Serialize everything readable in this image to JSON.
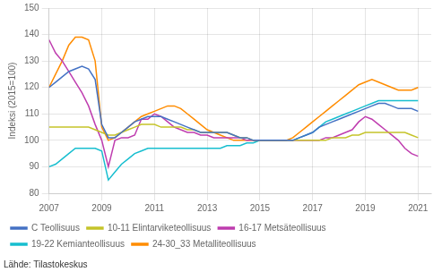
{
  "chart_data": {
    "type": "line",
    "ylabel": "Indeksi (2015=100)",
    "annotations": [
      "Lähde: Tilastokeskus"
    ],
    "x": [
      2007,
      2007.25,
      2007.5,
      2007.75,
      2008,
      2008.25,
      2008.5,
      2008.75,
      2009,
      2009.25,
      2009.5,
      2009.75,
      2010,
      2010.25,
      2010.5,
      2010.75,
      2011,
      2011.25,
      2011.5,
      2011.75,
      2012,
      2012.25,
      2012.5,
      2012.75,
      2013,
      2013.25,
      2013.5,
      2013.75,
      2014,
      2014.25,
      2014.5,
      2014.75,
      2015,
      2015.25,
      2015.5,
      2015.75,
      2016,
      2016.25,
      2016.5,
      2016.75,
      2017,
      2017.25,
      2017.5,
      2017.75,
      2018,
      2018.25,
      2018.5,
      2018.75,
      2019,
      2019.25,
      2019.5,
      2019.75,
      2020,
      2020.25,
      2020.5,
      2020.75,
      2021
    ],
    "series": [
      {
        "name": "C Teollisuus",
        "color": "#4472c4",
        "values": [
          120,
          122,
          124,
          126,
          127,
          128,
          127,
          123,
          106,
          101,
          101,
          103,
          105,
          107,
          108,
          109,
          109,
          109,
          108,
          107,
          106,
          105,
          104,
          103,
          103,
          103,
          103,
          103,
          102,
          101,
          101,
          100,
          100,
          100,
          100,
          100,
          100,
          100,
          101,
          102,
          103,
          105,
          106,
          107,
          108,
          109,
          110,
          111,
          112,
          113,
          114,
          114,
          113,
          112,
          112,
          112,
          111
        ]
      },
      {
        "name": "10-11 Elintarviketeollisuus",
        "color": "#c5c42a",
        "values": [
          105,
          105,
          105,
          105,
          105,
          105,
          105,
          104,
          103,
          102,
          102,
          103,
          104,
          105,
          106,
          106,
          106,
          105,
          105,
          105,
          105,
          104,
          104,
          103,
          103,
          103,
          103,
          103,
          102,
          101,
          101,
          100,
          100,
          100,
          100,
          100,
          100,
          100,
          100,
          100,
          100,
          100,
          100,
          101,
          101,
          101,
          102,
          102,
          103,
          103,
          103,
          103,
          103,
          103,
          103,
          102,
          101
        ]
      },
      {
        "name": "16-17 Metsäteollisuus",
        "color": "#bf3daf",
        "values": [
          138,
          133,
          130,
          126,
          122,
          118,
          113,
          106,
          100,
          90,
          100,
          101,
          101,
          102,
          108,
          108,
          110,
          109,
          107,
          105,
          104,
          103,
          103,
          102,
          102,
          101,
          101,
          101,
          101,
          101,
          100,
          100,
          100,
          100,
          100,
          100,
          100,
          100,
          100,
          100,
          100,
          100,
          101,
          101,
          102,
          103,
          104,
          107,
          109,
          108,
          106,
          104,
          102,
          100,
          97,
          95,
          94
        ]
      },
      {
        "name": "19-22 Kemianteollisuus",
        "color": "#17becf",
        "values": [
          90,
          91,
          93,
          95,
          97,
          97,
          97,
          97,
          96,
          85,
          88,
          91,
          93,
          95,
          96,
          97,
          97,
          97,
          97,
          97,
          97,
          97,
          97,
          97,
          97,
          97,
          97,
          98,
          98,
          98,
          99,
          99,
          100,
          100,
          100,
          100,
          100,
          100,
          101,
          102,
          103,
          105,
          107,
          108,
          109,
          110,
          111,
          112,
          113,
          114,
          115,
          115,
          115,
          115,
          115,
          115,
          115
        ]
      },
      {
        "name": "24-30_33 Metalliteollisuus",
        "color": "#ff8c00",
        "values": [
          120,
          125,
          130,
          136,
          139,
          139,
          138,
          130,
          105,
          100,
          101,
          103,
          105,
          107,
          109,
          110,
          111,
          112,
          113,
          113,
          112,
          110,
          108,
          106,
          104,
          103,
          102,
          101,
          100,
          100,
          100,
          100,
          100,
          100,
          100,
          100,
          100,
          101,
          103,
          105,
          107,
          109,
          111,
          113,
          115,
          117,
          119,
          121,
          122,
          123,
          122,
          121,
          120,
          119,
          119,
          119,
          120
        ]
      }
    ],
    "xlim": [
      2007,
      2021.5
    ],
    "xticks": [
      2007,
      2009,
      2011,
      2013,
      2015,
      2017,
      2019,
      2021
    ],
    "ylim": [
      80,
      150
    ],
    "yticks": [
      80,
      90,
      100,
      110,
      120,
      130,
      140,
      150
    ],
    "grid": true,
    "legend": "bottom"
  }
}
